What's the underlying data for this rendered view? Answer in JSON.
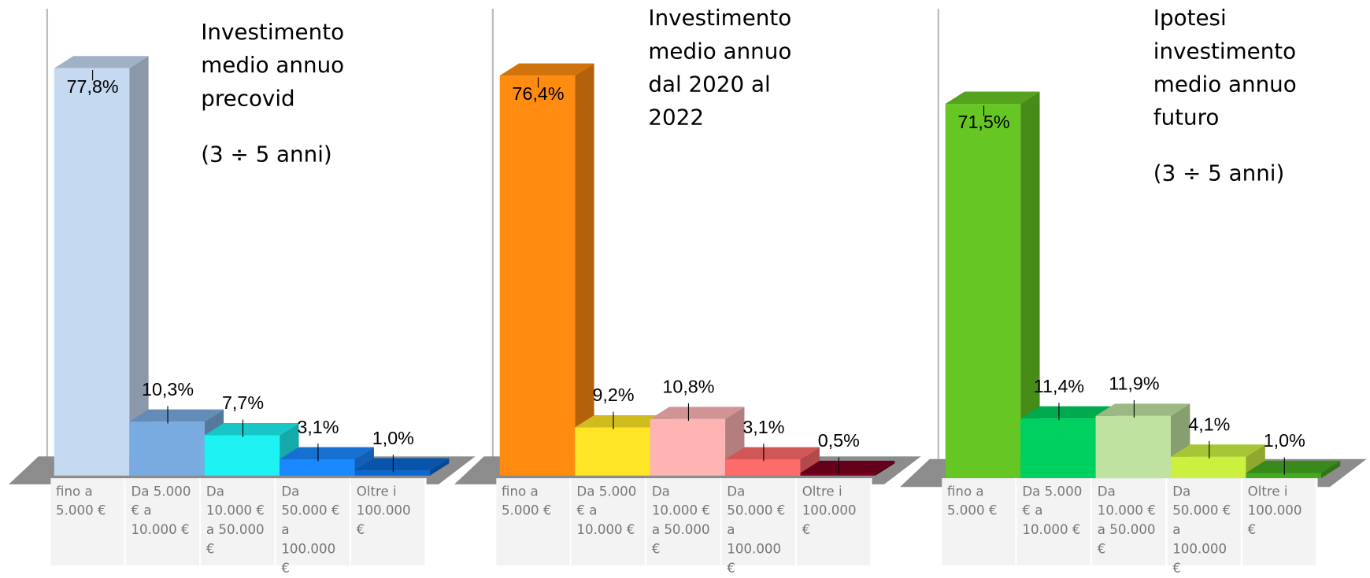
{
  "chart_data": [
    {
      "type": "bar3d",
      "title": "Investimento medio annuo precovid",
      "subtitle": "(3 ÷ 5 anni)",
      "categories": [
        "fino a 5.000 €",
        "Da 5.000 € a 10.000 €",
        "Da 10.000 € a 50.000 €",
        "Da 50.000 € a 100.000 €",
        "Oltre i 100.000 €"
      ],
      "values": [
        77.8,
        10.3,
        7.7,
        3.1,
        1.0
      ],
      "value_labels": [
        "77,8%",
        "10,3%",
        "7,7%",
        "3,1%",
        "1,0%"
      ],
      "colors": [
        "#c5d9f1",
        "#7aabe0",
        "#1ef2f2",
        "#1a88ff",
        "#0a68d0"
      ]
    },
    {
      "type": "bar3d",
      "title": "Investimento medio annuo dal 2020 al 2022",
      "categories": [
        "fino a 5.000 €",
        "Da 5.000 € a 10.000 €",
        "Da 10.000 € a 50.000 €",
        "Da 50.000 € a 100.000 €",
        "Oltre i 100.000 €"
      ],
      "values": [
        76.4,
        9.2,
        10.8,
        3.1,
        0.5
      ],
      "value_labels": [
        "76,4%",
        "9,2%",
        "10,8%",
        "3,1%",
        "0,5%"
      ],
      "colors": [
        "#ff8c10",
        "#ffe526",
        "#ffb4b4",
        "#ff6a6a",
        "#7a0020"
      ]
    },
    {
      "type": "bar3d",
      "title": "Ipotesi investimento medio annuo futuro",
      "subtitle": "(3 ÷ 5 anni)",
      "categories": [
        "fino a 5.000 €",
        "Da 5.000 € a 10.000 €",
        "Da 10.000 € a 50.000 €",
        "Da 50.000 € a 100.000 €",
        "Oltre i 100.000 €"
      ],
      "values": [
        71.5,
        11.4,
        11.9,
        4.1,
        1.0
      ],
      "value_labels": [
        "71,5%",
        "11,4%",
        "11,9%",
        "4,1%",
        "1,0%"
      ],
      "colors": [
        "#66c624",
        "#00d060",
        "#c0e2a0",
        "#ccf040",
        "#44a820"
      ]
    }
  ]
}
